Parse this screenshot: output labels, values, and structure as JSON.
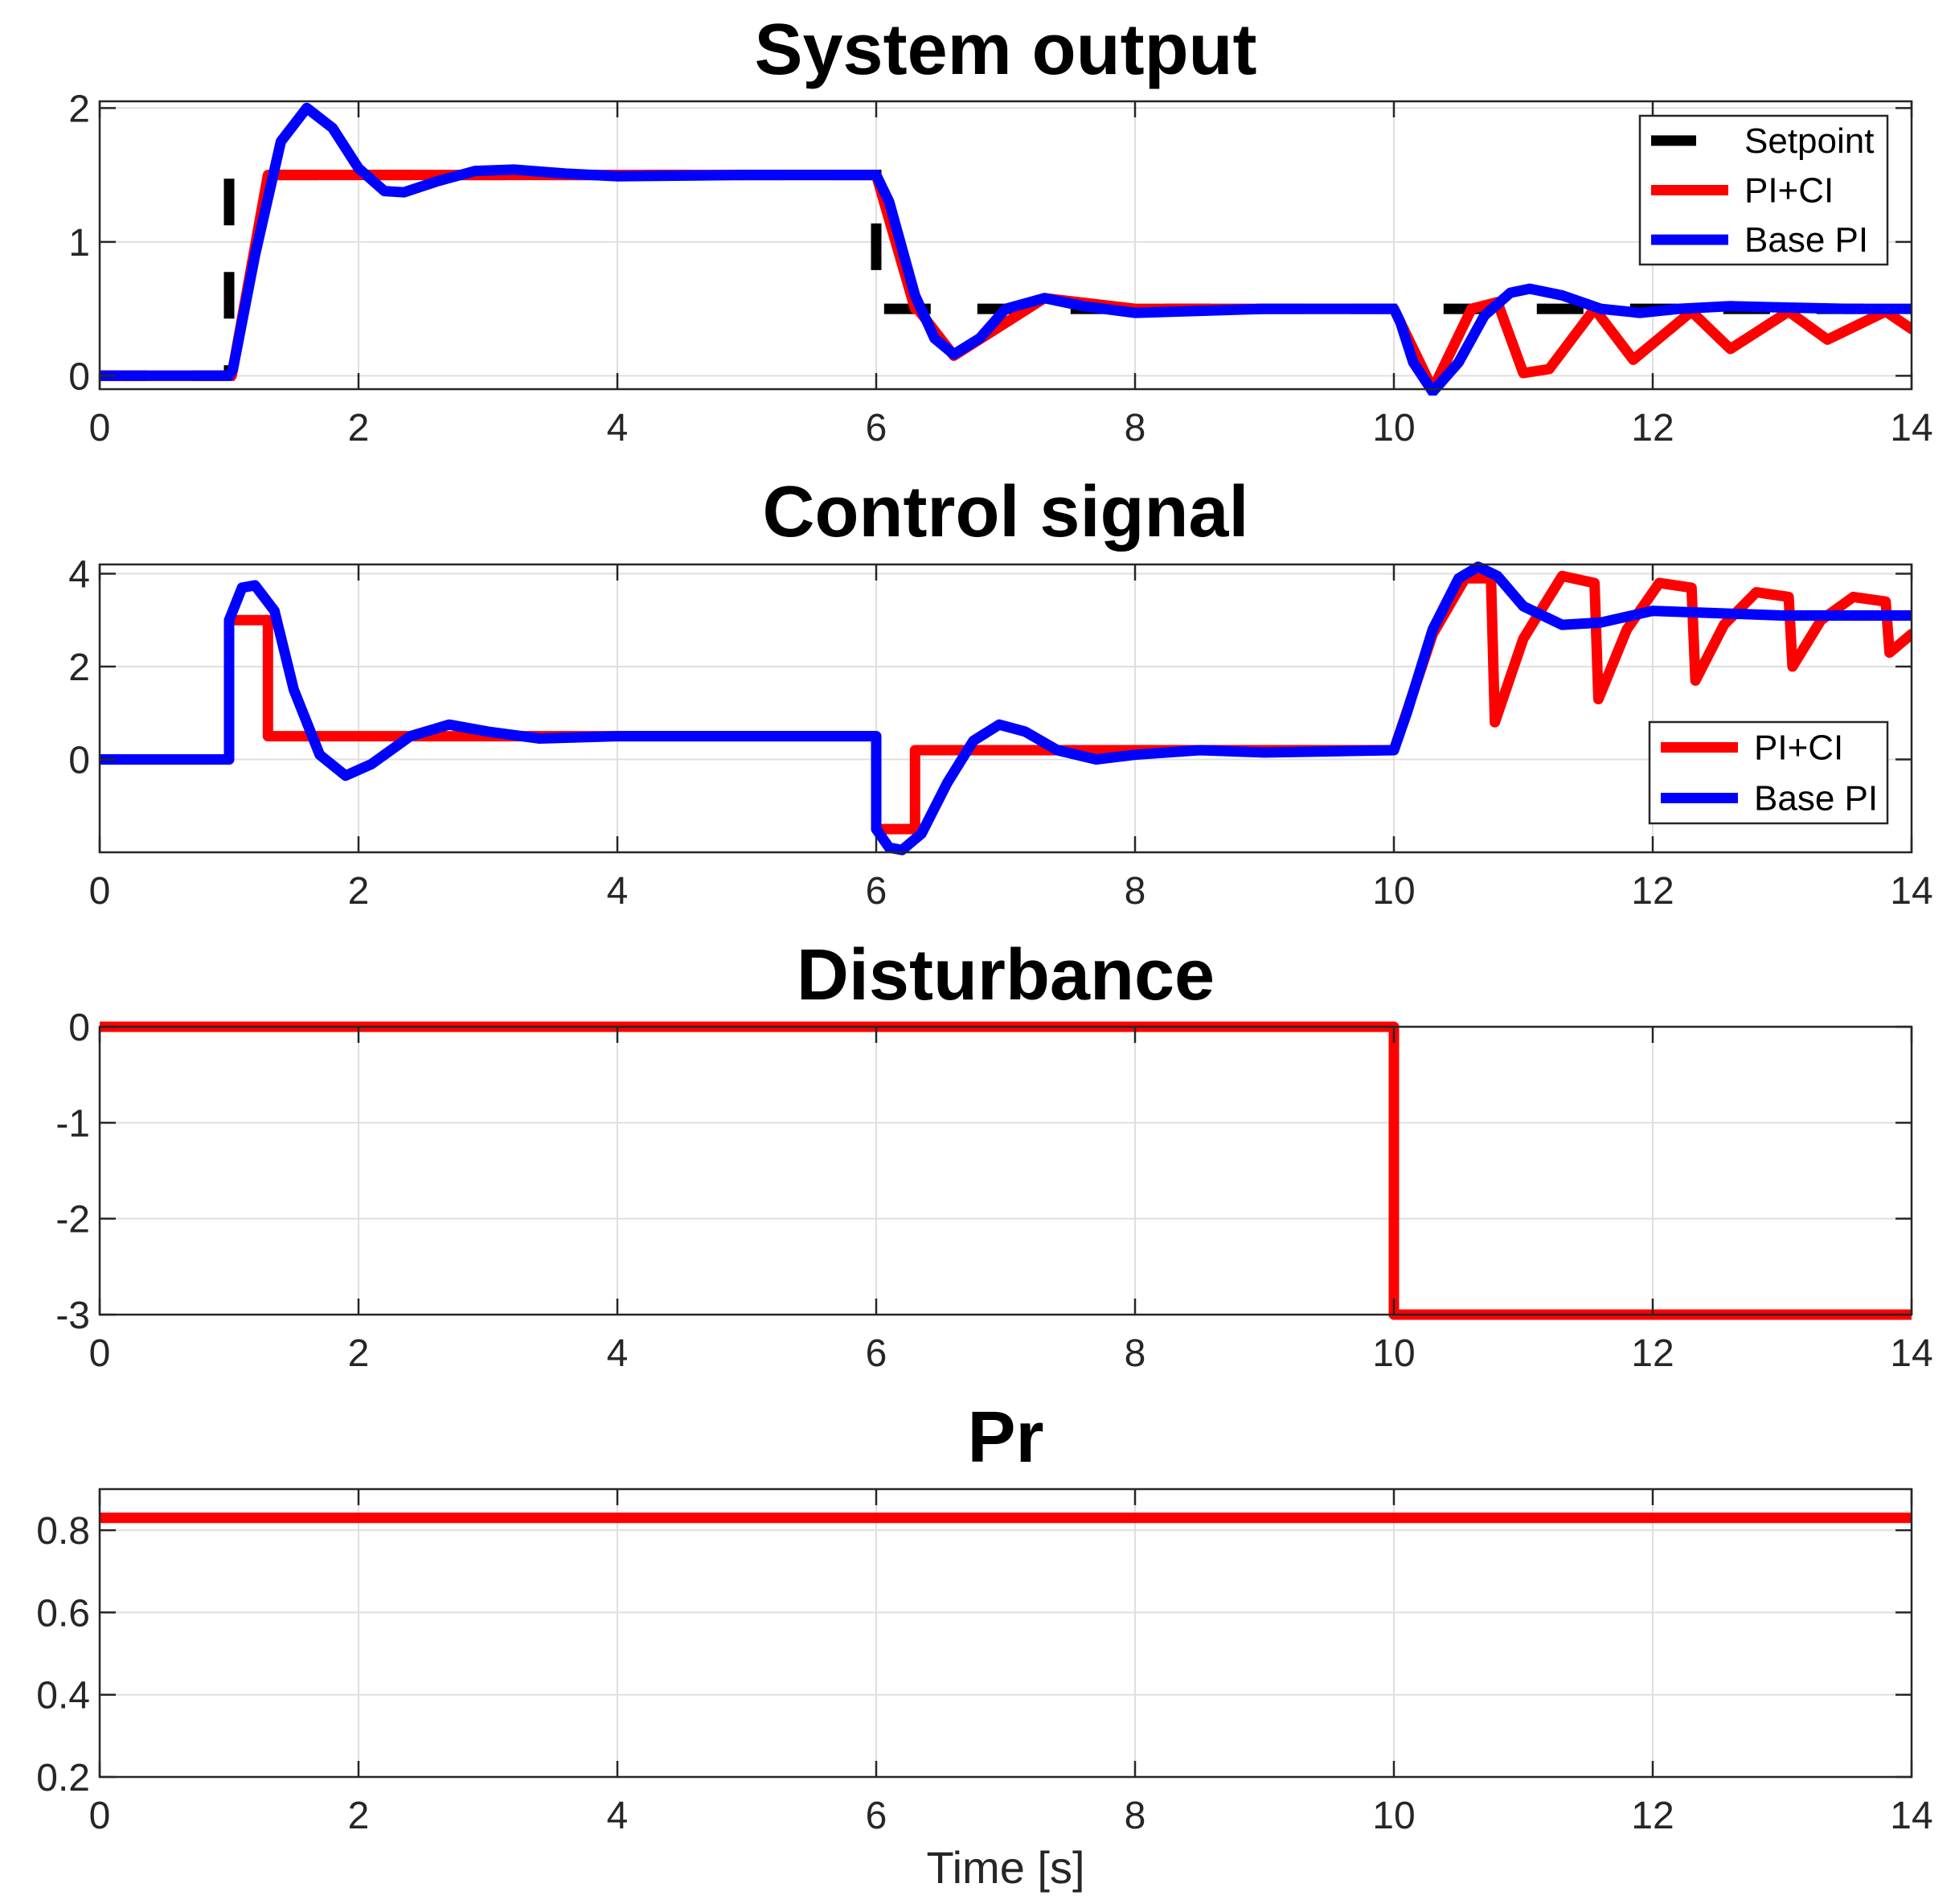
{
  "chart_data": [
    {
      "type": "line",
      "title": "System output",
      "xlabel": "",
      "ylabel": "",
      "xlim": [
        0,
        14
      ],
      "ylim": [
        -0.1,
        2.05
      ],
      "xticks": [
        0,
        2,
        4,
        6,
        8,
        10,
        12,
        14
      ],
      "yticks": [
        0,
        1,
        2
      ],
      "grid": true,
      "legend": {
        "position": "top-right",
        "entries": [
          "Setpoint",
          "PI+CI",
          "Base PI"
        ]
      },
      "series": [
        {
          "name": "Setpoint",
          "color": "#000000",
          "style": "dashed",
          "x": [
            0,
            1,
            1,
            6,
            6,
            14
          ],
          "y": [
            0,
            0,
            1.5,
            1.5,
            0.5,
            0.5
          ]
        },
        {
          "name": "PI+CI",
          "color": "#ff0000",
          "style": "solid",
          "x": [
            0,
            1.0,
            1.02,
            1.3,
            1.32,
            6.0,
            6.3,
            6.32,
            6.6,
            7.3,
            8.0,
            10.0,
            10.3,
            10.6,
            10.8,
            11.0,
            11.2,
            11.55,
            11.85,
            12.3,
            12.6,
            13.05,
            13.35,
            13.8,
            14.0
          ],
          "y": [
            0,
            0,
            0.0,
            1.5,
            1.5,
            1.5,
            0.5,
            0.5,
            0.15,
            0.58,
            0.5,
            0.5,
            -0.1,
            0.5,
            0.55,
            0.02,
            0.05,
            0.5,
            0.12,
            0.48,
            0.2,
            0.48,
            0.27,
            0.48,
            0.35
          ]
        },
        {
          "name": "Base PI",
          "color": "#0000ff",
          "style": "solid",
          "x": [
            0,
            1.0,
            1.03,
            1.2,
            1.4,
            1.6,
            1.8,
            2.0,
            2.2,
            2.35,
            2.6,
            2.9,
            3.2,
            3.6,
            4.0,
            5.0,
            6.0,
            6.1,
            6.3,
            6.45,
            6.6,
            6.8,
            7.0,
            7.3,
            7.6,
            8.0,
            9.0,
            10.0,
            10.05,
            10.15,
            10.3,
            10.5,
            10.7,
            10.9,
            11.05,
            11.3,
            11.6,
            11.9,
            12.2,
            12.6,
            13.0,
            13.5,
            14.0
          ],
          "y": [
            0,
            0,
            0.05,
            0.9,
            1.75,
            2.0,
            1.85,
            1.55,
            1.38,
            1.37,
            1.45,
            1.53,
            1.54,
            1.51,
            1.49,
            1.5,
            1.5,
            1.3,
            0.6,
            0.28,
            0.16,
            0.28,
            0.5,
            0.58,
            0.52,
            0.47,
            0.5,
            0.5,
            0.4,
            0.1,
            -0.12,
            0.1,
            0.45,
            0.62,
            0.65,
            0.6,
            0.5,
            0.47,
            0.5,
            0.52,
            0.51,
            0.5,
            0.5
          ]
        }
      ]
    },
    {
      "type": "line",
      "title": "Control signal",
      "xlabel": "",
      "ylabel": "",
      "xlim": [
        0,
        14
      ],
      "ylim": [
        -2,
        4.2
      ],
      "xticks": [
        0,
        2,
        4,
        6,
        8,
        10,
        12,
        14
      ],
      "yticks": [
        0,
        2,
        4
      ],
      "grid": true,
      "legend": {
        "position": "right",
        "entries": [
          "PI+CI",
          "Base PI"
        ]
      },
      "series": [
        {
          "name": "PI+CI",
          "color": "#ff0000",
          "style": "solid",
          "x": [
            0,
            1.0,
            1.0,
            1.3,
            1.3,
            6.0,
            6.0,
            6.3,
            6.3,
            10.0,
            10.3,
            10.55,
            10.75,
            10.78,
            11.0,
            11.3,
            11.55,
            11.58,
            11.8,
            12.05,
            12.3,
            12.33,
            12.55,
            12.8,
            13.05,
            13.08,
            13.3,
            13.55,
            13.8,
            13.83,
            14.0
          ],
          "y": [
            0,
            0,
            3.0,
            3.0,
            0.5,
            0.5,
            -1.5,
            -1.5,
            0.2,
            0.2,
            2.7,
            3.9,
            3.9,
            0.8,
            2.6,
            3.95,
            3.8,
            1.3,
            2.8,
            3.8,
            3.7,
            1.7,
            2.9,
            3.6,
            3.5,
            2.0,
            3.0,
            3.5,
            3.4,
            2.3,
            2.7
          ]
        },
        {
          "name": "Base PI",
          "color": "#0000ff",
          "style": "solid",
          "x": [
            0,
            1.0,
            1.0,
            1.1,
            1.2,
            1.35,
            1.5,
            1.7,
            1.9,
            2.1,
            2.4,
            2.7,
            3.0,
            3.4,
            4.0,
            5.0,
            6.0,
            6.0,
            6.1,
            6.2,
            6.35,
            6.55,
            6.75,
            6.95,
            7.15,
            7.4,
            7.7,
            8.0,
            8.5,
            9.0,
            10.0,
            10.1,
            10.3,
            10.5,
            10.65,
            10.8,
            11.0,
            11.3,
            11.6,
            12.0,
            12.5,
            13.0,
            14.0
          ],
          "y": [
            0,
            0,
            3.0,
            3.7,
            3.75,
            3.2,
            1.5,
            0.1,
            -0.35,
            -0.1,
            0.5,
            0.75,
            0.6,
            0.45,
            0.5,
            0.5,
            0.5,
            -1.5,
            -1.9,
            -1.95,
            -1.6,
            -0.5,
            0.4,
            0.75,
            0.6,
            0.2,
            0.0,
            0.1,
            0.2,
            0.15,
            0.2,
            1.0,
            2.8,
            3.9,
            4.15,
            3.95,
            3.3,
            2.9,
            2.95,
            3.2,
            3.15,
            3.1,
            3.1
          ]
        }
      ]
    },
    {
      "type": "line",
      "title": "Disturbance",
      "xlabel": "",
      "ylabel": "",
      "xlim": [
        0,
        14
      ],
      "ylim": [
        -3,
        0
      ],
      "xticks": [
        0,
        2,
        4,
        6,
        8,
        10,
        12,
        14
      ],
      "yticks": [
        0,
        -1,
        -2,
        -3
      ],
      "grid": true,
      "series": [
        {
          "name": "Disturbance",
          "color": "#ff0000",
          "style": "solid",
          "x": [
            0,
            10,
            10,
            14
          ],
          "y": [
            0,
            0,
            -3,
            -3
          ]
        }
      ]
    },
    {
      "type": "line",
      "title": "Pr",
      "xlabel": "Time [s]",
      "ylabel": "",
      "xlim": [
        0,
        14
      ],
      "ylim": [
        0.2,
        0.9
      ],
      "xticks": [
        0,
        2,
        4,
        6,
        8,
        10,
        12,
        14
      ],
      "yticks": [
        0.2,
        0.4,
        0.6,
        0.8
      ],
      "grid": true,
      "series": [
        {
          "name": "Pr",
          "color": "#ff0000",
          "style": "solid",
          "x": [
            0,
            14
          ],
          "y": [
            0.83,
            0.83
          ]
        }
      ]
    }
  ]
}
